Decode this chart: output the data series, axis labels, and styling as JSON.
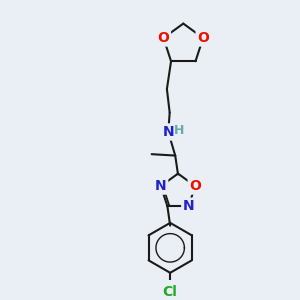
{
  "bg_color": "#eaeff5",
  "bond_color": "#1a1a1a",
  "bond_width": 1.5,
  "atom_colors": {
    "O": "#ee1100",
    "N": "#2222cc",
    "Cl": "#22aa22",
    "H": "#66aaaa",
    "C": "#1a1a1a"
  },
  "font_size_atom": 10,
  "font_size_h": 9
}
